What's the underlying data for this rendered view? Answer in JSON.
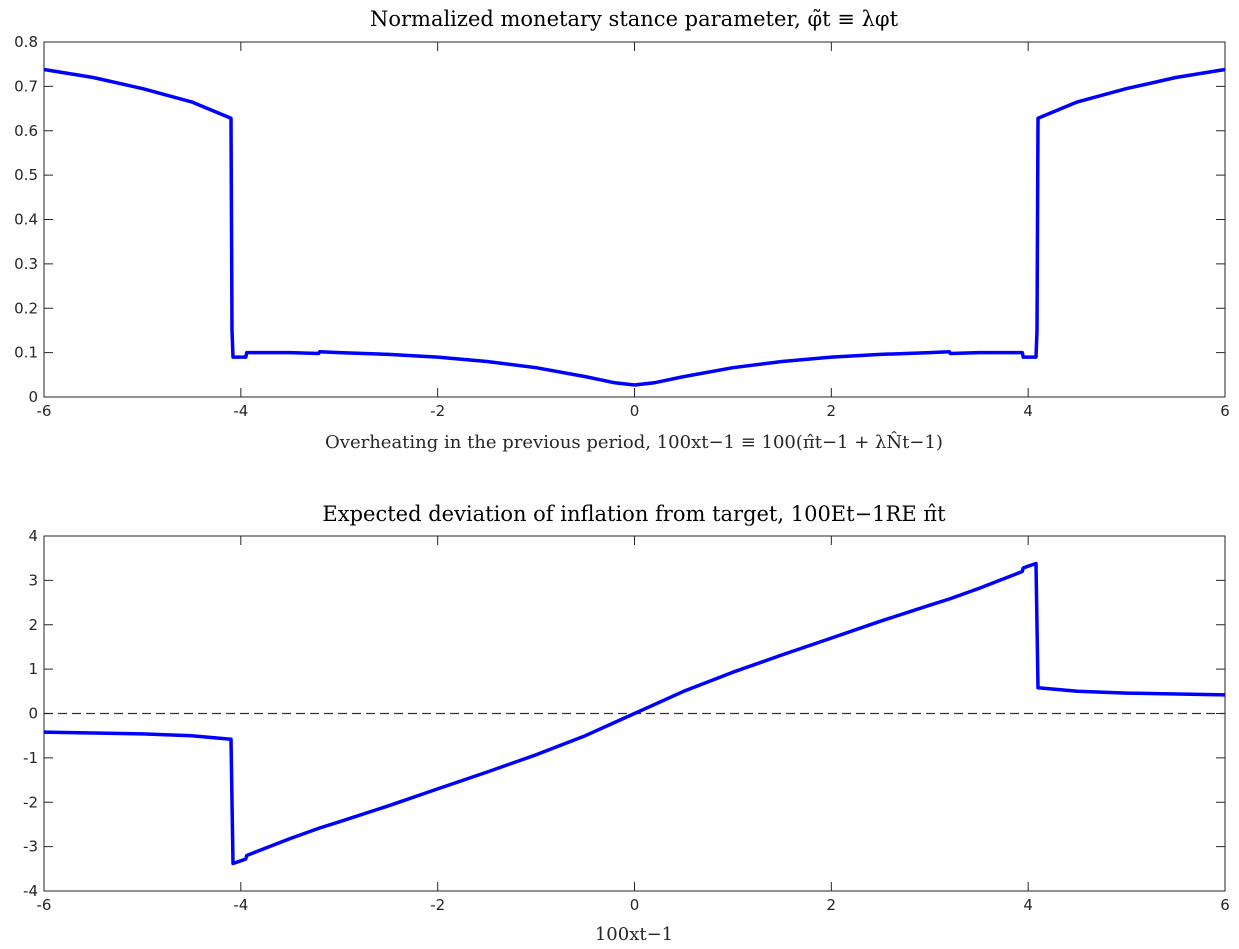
{
  "chart_data": [
    {
      "type": "line",
      "title": "Normalized monetary stance parameter, φ̃t ≡ λφt",
      "xlabel": "Overheating in the previous period, 100xt−1 ≡ 100(π̂t−1 + λN̂t−1)",
      "ylabel": "",
      "xlim": [
        -6,
        6
      ],
      "ylim": [
        0,
        0.8
      ],
      "xticks": [
        "-6",
        "-4",
        "-2",
        "0",
        "2",
        "4",
        "6"
      ],
      "yticks": [
        "0",
        "0.1",
        "0.2",
        "0.3",
        "0.4",
        "0.5",
        "0.6",
        "0.7",
        "0.8"
      ],
      "grid": false,
      "series": [
        {
          "color": "#0000ff",
          "x": [
            -6,
            -5.5,
            -5,
            -4.5,
            -4.1,
            -4.09,
            -4.08,
            -3.95,
            -3.94,
            -3.9,
            -3.5,
            -3.21,
            -3.2,
            -3.0,
            -2.5,
            -2.0,
            -1.5,
            -1.0,
            -0.5,
            -0.2,
            0,
            0.2,
            0.5,
            1.0,
            1.5,
            2.0,
            2.5,
            3.0,
            3.2,
            3.21,
            3.5,
            3.9,
            3.94,
            3.95,
            4.08,
            4.09,
            4.1,
            4.5,
            5,
            5.5,
            6
          ],
          "y": [
            0.738,
            0.72,
            0.695,
            0.665,
            0.628,
            0.15,
            0.09,
            0.09,
            0.1,
            0.1,
            0.1,
            0.098,
            0.102,
            0.1,
            0.096,
            0.09,
            0.08,
            0.066,
            0.046,
            0.032,
            0.027,
            0.032,
            0.046,
            0.066,
            0.08,
            0.09,
            0.096,
            0.1,
            0.102,
            0.098,
            0.1,
            0.1,
            0.1,
            0.09,
            0.09,
            0.15,
            0.628,
            0.665,
            0.695,
            0.72,
            0.738
          ]
        }
      ]
    },
    {
      "type": "line",
      "title": "Expected deviation of inflation from target, 100Et−1RE π̂t",
      "xlabel": "100xt−1",
      "ylabel": "",
      "xlim": [
        -6,
        6
      ],
      "ylim": [
        -4,
        4
      ],
      "xticks": [
        "-6",
        "-4",
        "-2",
        "0",
        "2",
        "4",
        "6"
      ],
      "yticks": [
        "-4",
        "-3",
        "-2",
        "-1",
        "0",
        "1",
        "2",
        "3",
        "4"
      ],
      "grid": false,
      "reference_line": {
        "y": 0,
        "style": "dashed",
        "color": "#333333"
      },
      "series": [
        {
          "color": "#0000ff",
          "x": [
            -6,
            -5,
            -4.5,
            -4.1,
            -4.08,
            -4.0,
            -3.95,
            -3.94,
            -3.5,
            -3.2,
            -3.0,
            -2.5,
            -2.0,
            -1.5,
            -1.0,
            -0.5,
            0,
            0.5,
            1.0,
            1.5,
            2.0,
            2.5,
            3.0,
            3.2,
            3.5,
            3.94,
            3.95,
            4.0,
            4.08,
            4.1,
            4.5,
            5,
            6
          ],
          "y": [
            -0.42,
            -0.46,
            -0.5,
            -0.58,
            -3.38,
            -3.32,
            -3.28,
            -3.2,
            -2.82,
            -2.58,
            -2.44,
            -2.08,
            -1.7,
            -1.32,
            -0.93,
            -0.5,
            0,
            0.5,
            0.93,
            1.32,
            1.7,
            2.08,
            2.44,
            2.58,
            2.82,
            3.2,
            3.28,
            3.32,
            3.38,
            0.58,
            0.5,
            0.46,
            0.42
          ]
        }
      ]
    }
  ]
}
